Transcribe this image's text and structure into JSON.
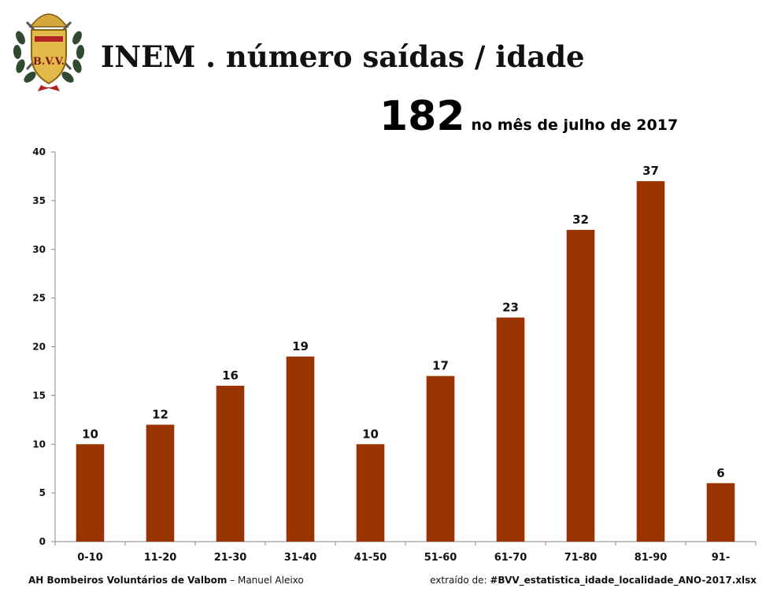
{
  "header": {
    "title": "INEM . número saídas / idade",
    "total": "182",
    "period": "no mês de julho de 2017",
    "logo_text": "B.V.V."
  },
  "chart_data": {
    "type": "bar",
    "categories": [
      "0-10",
      "11-20",
      "21-30",
      "31-40",
      "41-50",
      "51-60",
      "61-70",
      "71-80",
      "81-90",
      "91-"
    ],
    "values": [
      10,
      12,
      16,
      19,
      10,
      17,
      23,
      32,
      37,
      6
    ],
    "yticks": [
      0,
      5,
      10,
      15,
      20,
      25,
      30,
      35,
      40
    ],
    "ylim": [
      0,
      40
    ],
    "bar_color": "#993300",
    "data_labels": true,
    "grid": false,
    "legend": false
  },
  "footer": {
    "org": "AH Bombeiros Voluntários de Valbom",
    "separator": " – ",
    "author": "Manuel Aleixo",
    "source_prefix": "extraído de: ",
    "source_file": "#BVV_estatistica_idade_localidade_ANO-2017.xlsx"
  }
}
